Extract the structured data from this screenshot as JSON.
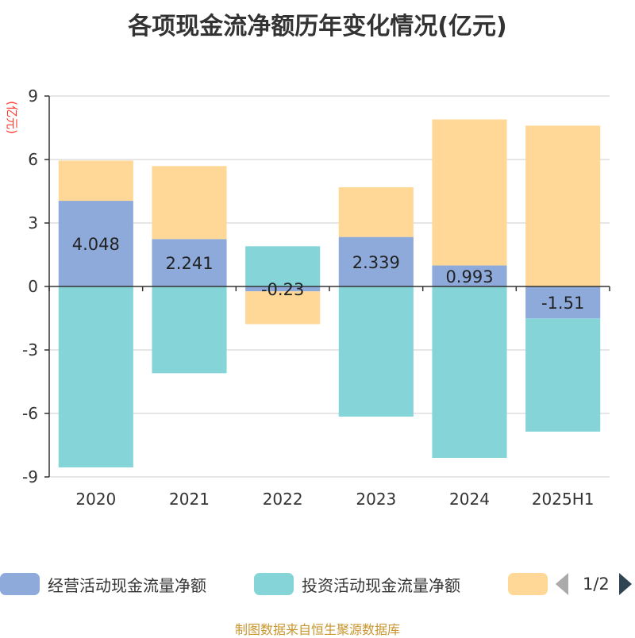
{
  "title": "各项现金流净额历年变化情况(亿元)",
  "unit_label": "(亿元)",
  "source": "制图数据来自恒生聚源数据库",
  "pager": {
    "text": "1/2"
  },
  "colors": {
    "operating": "#8eaadb",
    "investing": "#85d5d8",
    "financing": "#ffd898",
    "grid": "#cccccc",
    "axis": "#333333"
  },
  "legend": [
    {
      "label": "经营活动现金流量净额",
      "color": "#8eaadb"
    },
    {
      "label": "投资活动现金流量净额",
      "color": "#85d5d8"
    },
    {
      "label": "",
      "color": "#ffd898"
    }
  ],
  "chart_data": {
    "type": "bar",
    "stacked": true,
    "categories": [
      "2020",
      "2021",
      "2022",
      "2023",
      "2024",
      "2025H1"
    ],
    "ylim": [
      -9,
      9
    ],
    "yticks": [
      9,
      6,
      3,
      0,
      -3,
      -6,
      -9
    ],
    "grid": true,
    "legend_position": "bottom",
    "series": [
      {
        "name": "经营活动现金流量净额",
        "values": [
          4.048,
          2.241,
          -0.23,
          2.339,
          0.993,
          -1.51
        ],
        "labels": [
          "4.048",
          "2.241",
          "-0.23",
          "2.339",
          "0.993",
          "-1.51"
        ]
      },
      {
        "name": "投资活动现金流量净额",
        "values": [
          -8.55,
          -4.1,
          1.9,
          -6.15,
          -8.1,
          -5.35
        ]
      },
      {
        "values": [
          1.9,
          3.45,
          -1.55,
          2.35,
          6.9,
          7.6
        ]
      }
    ]
  }
}
